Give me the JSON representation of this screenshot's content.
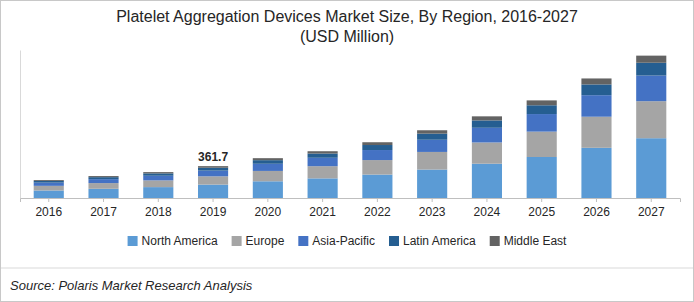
{
  "chart_data": {
    "type": "bar",
    "stacked": true,
    "title": "Platelet Aggregation Devices Market Size, By Region, 2016-2027",
    "subtitle": "(USD Million)",
    "source": "Source: Polaris Market Research Analysis",
    "categories": [
      "2016",
      "2017",
      "2018",
      "2019",
      "2020",
      "2021",
      "2022",
      "2023",
      "2024",
      "2025",
      "2026",
      "2027"
    ],
    "series": [
      {
        "name": "North America",
        "color": "#5b9bd5",
        "values": [
          85.3,
          104.6,
          123.5,
          152.0,
          189.8,
          223.0,
          265.9,
          323.0,
          389.3,
          465.4,
          569.9,
          678.7
        ]
      },
      {
        "name": "Europe",
        "color": "#a5a5a5",
        "values": [
          52.8,
          64.7,
          76.4,
          94.0,
          117.5,
          138.1,
          164.6,
          199.9,
          241.0,
          288.1,
          352.8,
          420.2
        ]
      },
      {
        "name": "Asia-Pacific",
        "color": "#4472c4",
        "values": [
          36.5,
          44.8,
          52.9,
          65.1,
          81.4,
          95.6,
          113.9,
          138.4,
          166.9,
          199.4,
          244.3,
          290.9
        ]
      },
      {
        "name": "Latin America",
        "color": "#255e91",
        "values": [
          18.3,
          22.4,
          26.5,
          32.6,
          40.7,
          47.8,
          57.0,
          69.2,
          83.4,
          99.7,
          122.1,
          145.4
        ]
      },
      {
        "name": "Middle East",
        "color": "#636363",
        "values": [
          10.1,
          12.5,
          14.7,
          18.0,
          22.6,
          26.5,
          31.6,
          38.5,
          46.4,
          55.4,
          67.9,
          80.8
        ]
      }
    ],
    "annotations": [
      {
        "text": "361.7",
        "x": "2019",
        "y": 361.7
      }
    ],
    "ylim": [
      0,
      1680
    ],
    "tick_labels": "x",
    "grid": false,
    "legend": "bottom"
  }
}
